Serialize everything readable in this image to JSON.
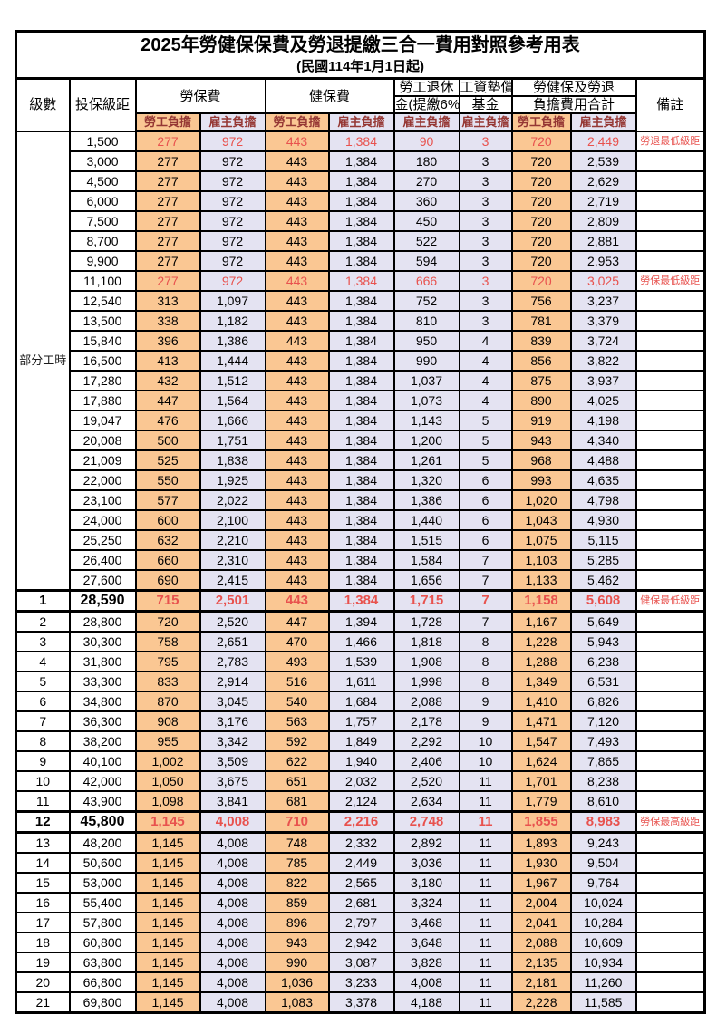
{
  "title": "2025年勞健保保費及勞退提繳三合一費用對照參考用表",
  "subtitle": "(民國114年1月1日起)",
  "colors": {
    "employee_bg": "#FAC793",
    "employer_bg": "#E4E3F2",
    "highlight_red": "#E8524E",
    "subheader_text": "#953734"
  },
  "header": {
    "level": "級數",
    "salary": "投保級距",
    "labor": "勞保費",
    "health": "健保費",
    "pension_line1": "勞工退休",
    "pension_line2": "金(提繳6%)",
    "wage_fund_line1": "工資墊償",
    "wage_fund_line2": "基金",
    "total_line1": "勞健保及勞退",
    "total_line2": "負擔費用合計",
    "note": "備註",
    "employee": "勞工負擔",
    "employer": "雇主負擔"
  },
  "part_time_label": "部分工時",
  "part_time_row_count": 23,
  "rows": [
    {
      "l": "",
      "s": "1,500",
      "v": [
        "277",
        "972",
        "443",
        "1,384",
        "90",
        "3",
        "720",
        "2,449"
      ],
      "n": "勞退最低級距",
      "st": "red"
    },
    {
      "l": "",
      "s": "3,000",
      "v": [
        "277",
        "972",
        "443",
        "1,384",
        "180",
        "3",
        "720",
        "2,539"
      ],
      "n": "",
      "st": ""
    },
    {
      "l": "",
      "s": "4,500",
      "v": [
        "277",
        "972",
        "443",
        "1,384",
        "270",
        "3",
        "720",
        "2,629"
      ],
      "n": "",
      "st": ""
    },
    {
      "l": "",
      "s": "6,000",
      "v": [
        "277",
        "972",
        "443",
        "1,384",
        "360",
        "3",
        "720",
        "2,719"
      ],
      "n": "",
      "st": ""
    },
    {
      "l": "",
      "s": "7,500",
      "v": [
        "277",
        "972",
        "443",
        "1,384",
        "450",
        "3",
        "720",
        "2,809"
      ],
      "n": "",
      "st": ""
    },
    {
      "l": "",
      "s": "8,700",
      "v": [
        "277",
        "972",
        "443",
        "1,384",
        "522",
        "3",
        "720",
        "2,881"
      ],
      "n": "",
      "st": ""
    },
    {
      "l": "",
      "s": "9,900",
      "v": [
        "277",
        "972",
        "443",
        "1,384",
        "594",
        "3",
        "720",
        "2,953"
      ],
      "n": "",
      "st": ""
    },
    {
      "l": "",
      "s": "11,100",
      "v": [
        "277",
        "972",
        "443",
        "1,384",
        "666",
        "3",
        "720",
        "3,025"
      ],
      "n": "勞保最低級距",
      "st": "red"
    },
    {
      "l": "",
      "s": "12,540",
      "v": [
        "313",
        "1,097",
        "443",
        "1,384",
        "752",
        "3",
        "756",
        "3,237"
      ],
      "n": "",
      "st": ""
    },
    {
      "l": "",
      "s": "13,500",
      "v": [
        "338",
        "1,182",
        "443",
        "1,384",
        "810",
        "3",
        "781",
        "3,379"
      ],
      "n": "",
      "st": ""
    },
    {
      "l": "",
      "s": "15,840",
      "v": [
        "396",
        "1,386",
        "443",
        "1,384",
        "950",
        "4",
        "839",
        "3,724"
      ],
      "n": "",
      "st": ""
    },
    {
      "l": "",
      "s": "16,500",
      "v": [
        "413",
        "1,444",
        "443",
        "1,384",
        "990",
        "4",
        "856",
        "3,822"
      ],
      "n": "",
      "st": ""
    },
    {
      "l": "",
      "s": "17,280",
      "v": [
        "432",
        "1,512",
        "443",
        "1,384",
        "1,037",
        "4",
        "875",
        "3,937"
      ],
      "n": "",
      "st": ""
    },
    {
      "l": "",
      "s": "17,880",
      "v": [
        "447",
        "1,564",
        "443",
        "1,384",
        "1,073",
        "4",
        "890",
        "4,025"
      ],
      "n": "",
      "st": ""
    },
    {
      "l": "",
      "s": "19,047",
      "v": [
        "476",
        "1,666",
        "443",
        "1,384",
        "1,143",
        "5",
        "919",
        "4,198"
      ],
      "n": "",
      "st": ""
    },
    {
      "l": "",
      "s": "20,008",
      "v": [
        "500",
        "1,751",
        "443",
        "1,384",
        "1,200",
        "5",
        "943",
        "4,340"
      ],
      "n": "",
      "st": ""
    },
    {
      "l": "",
      "s": "21,009",
      "v": [
        "525",
        "1,838",
        "443",
        "1,384",
        "1,261",
        "5",
        "968",
        "4,488"
      ],
      "n": "",
      "st": ""
    },
    {
      "l": "",
      "s": "22,000",
      "v": [
        "550",
        "1,925",
        "443",
        "1,384",
        "1,320",
        "6",
        "993",
        "4,635"
      ],
      "n": "",
      "st": ""
    },
    {
      "l": "",
      "s": "23,100",
      "v": [
        "577",
        "2,022",
        "443",
        "1,384",
        "1,386",
        "6",
        "1,020",
        "4,798"
      ],
      "n": "",
      "st": ""
    },
    {
      "l": "",
      "s": "24,000",
      "v": [
        "600",
        "2,100",
        "443",
        "1,384",
        "1,440",
        "6",
        "1,043",
        "4,930"
      ],
      "n": "",
      "st": ""
    },
    {
      "l": "",
      "s": "25,250",
      "v": [
        "632",
        "2,210",
        "443",
        "1,384",
        "1,515",
        "6",
        "1,075",
        "5,115"
      ],
      "n": "",
      "st": ""
    },
    {
      "l": "",
      "s": "26,400",
      "v": [
        "660",
        "2,310",
        "443",
        "1,384",
        "1,584",
        "7",
        "1,103",
        "5,285"
      ],
      "n": "",
      "st": ""
    },
    {
      "l": "",
      "s": "27,600",
      "v": [
        "690",
        "2,415",
        "443",
        "1,384",
        "1,656",
        "7",
        "1,133",
        "5,462"
      ],
      "n": "",
      "st": ""
    },
    {
      "l": "1",
      "s": "28,590",
      "v": [
        "715",
        "2,501",
        "443",
        "1,384",
        "1,715",
        "7",
        "1,158",
        "5,608"
      ],
      "n": "健保最低級距",
      "st": "redbold"
    },
    {
      "l": "2",
      "s": "28,800",
      "v": [
        "720",
        "2,520",
        "447",
        "1,394",
        "1,728",
        "7",
        "1,167",
        "5,649"
      ],
      "n": "",
      "st": ""
    },
    {
      "l": "3",
      "s": "30,300",
      "v": [
        "758",
        "2,651",
        "470",
        "1,466",
        "1,818",
        "8",
        "1,228",
        "5,943"
      ],
      "n": "",
      "st": ""
    },
    {
      "l": "4",
      "s": "31,800",
      "v": [
        "795",
        "2,783",
        "493",
        "1,539",
        "1,908",
        "8",
        "1,288",
        "6,238"
      ],
      "n": "",
      "st": ""
    },
    {
      "l": "5",
      "s": "33,300",
      "v": [
        "833",
        "2,914",
        "516",
        "1,611",
        "1,998",
        "8",
        "1,349",
        "6,531"
      ],
      "n": "",
      "st": ""
    },
    {
      "l": "6",
      "s": "34,800",
      "v": [
        "870",
        "3,045",
        "540",
        "1,684",
        "2,088",
        "9",
        "1,410",
        "6,826"
      ],
      "n": "",
      "st": ""
    },
    {
      "l": "7",
      "s": "36,300",
      "v": [
        "908",
        "3,176",
        "563",
        "1,757",
        "2,178",
        "9",
        "1,471",
        "7,120"
      ],
      "n": "",
      "st": ""
    },
    {
      "l": "8",
      "s": "38,200",
      "v": [
        "955",
        "3,342",
        "592",
        "1,849",
        "2,292",
        "10",
        "1,547",
        "7,493"
      ],
      "n": "",
      "st": ""
    },
    {
      "l": "9",
      "s": "40,100",
      "v": [
        "1,002",
        "3,509",
        "622",
        "1,940",
        "2,406",
        "10",
        "1,624",
        "7,865"
      ],
      "n": "",
      "st": ""
    },
    {
      "l": "10",
      "s": "42,000",
      "v": [
        "1,050",
        "3,675",
        "651",
        "2,032",
        "2,520",
        "11",
        "1,701",
        "8,238"
      ],
      "n": "",
      "st": ""
    },
    {
      "l": "11",
      "s": "43,900",
      "v": [
        "1,098",
        "3,841",
        "681",
        "2,124",
        "2,634",
        "11",
        "1,779",
        "8,610"
      ],
      "n": "",
      "st": ""
    },
    {
      "l": "12",
      "s": "45,800",
      "v": [
        "1,145",
        "4,008",
        "710",
        "2,216",
        "2,748",
        "11",
        "1,855",
        "8,983"
      ],
      "n": "勞保最高級距",
      "st": "redbold"
    },
    {
      "l": "13",
      "s": "48,200",
      "v": [
        "1,145",
        "4,008",
        "748",
        "2,332",
        "2,892",
        "11",
        "1,893",
        "9,243"
      ],
      "n": "",
      "st": ""
    },
    {
      "l": "14",
      "s": "50,600",
      "v": [
        "1,145",
        "4,008",
        "785",
        "2,449",
        "3,036",
        "11",
        "1,930",
        "9,504"
      ],
      "n": "",
      "st": ""
    },
    {
      "l": "15",
      "s": "53,000",
      "v": [
        "1,145",
        "4,008",
        "822",
        "2,565",
        "3,180",
        "11",
        "1,967",
        "9,764"
      ],
      "n": "",
      "st": ""
    },
    {
      "l": "16",
      "s": "55,400",
      "v": [
        "1,145",
        "4,008",
        "859",
        "2,681",
        "3,324",
        "11",
        "2,004",
        "10,024"
      ],
      "n": "",
      "st": ""
    },
    {
      "l": "17",
      "s": "57,800",
      "v": [
        "1,145",
        "4,008",
        "896",
        "2,797",
        "3,468",
        "11",
        "2,041",
        "10,284"
      ],
      "n": "",
      "st": ""
    },
    {
      "l": "18",
      "s": "60,800",
      "v": [
        "1,145",
        "4,008",
        "943",
        "2,942",
        "3,648",
        "11",
        "2,088",
        "10,609"
      ],
      "n": "",
      "st": ""
    },
    {
      "l": "19",
      "s": "63,800",
      "v": [
        "1,145",
        "4,008",
        "990",
        "3,087",
        "3,828",
        "11",
        "2,135",
        "10,934"
      ],
      "n": "",
      "st": ""
    },
    {
      "l": "20",
      "s": "66,800",
      "v": [
        "1,145",
        "4,008",
        "1,036",
        "3,233",
        "4,008",
        "11",
        "2,181",
        "11,260"
      ],
      "n": "",
      "st": ""
    },
    {
      "l": "21",
      "s": "69,800",
      "v": [
        "1,145",
        "4,008",
        "1,083",
        "3,378",
        "4,188",
        "11",
        "2,228",
        "11,585"
      ],
      "n": "",
      "st": ""
    }
  ]
}
